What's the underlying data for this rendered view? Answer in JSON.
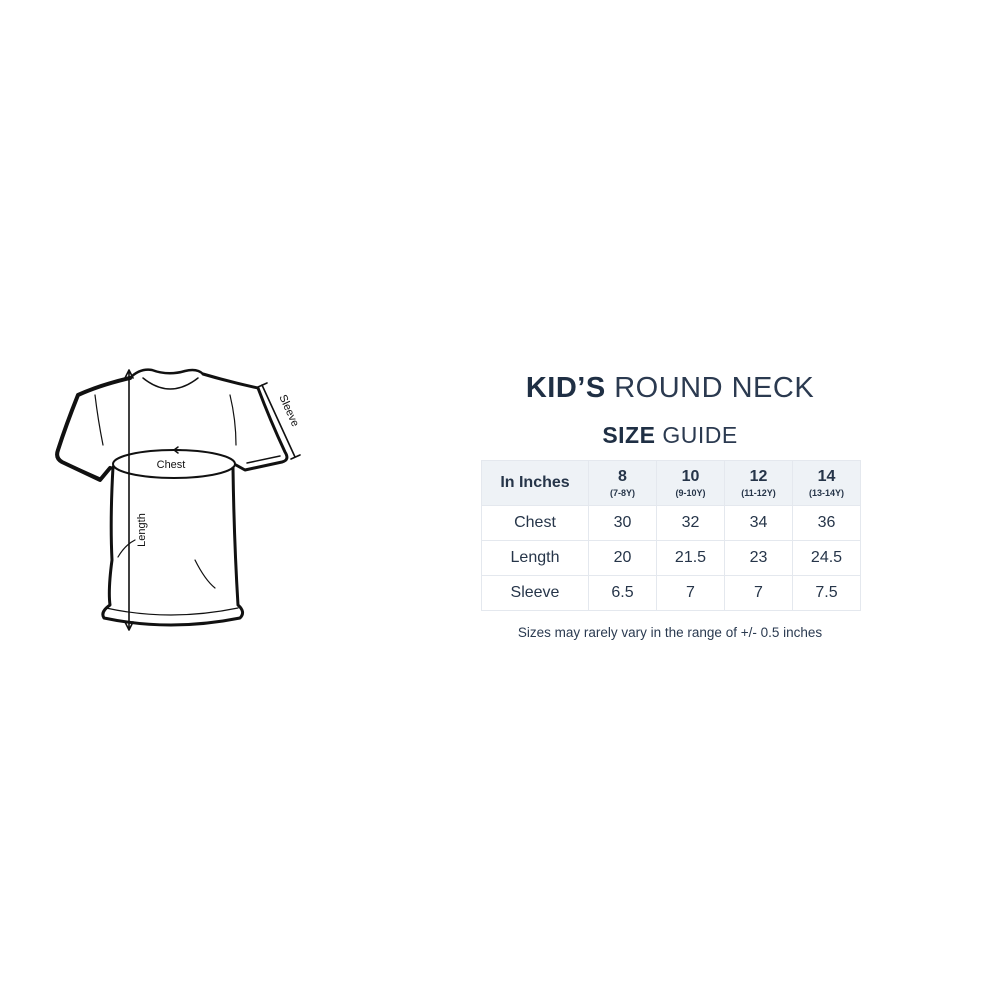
{
  "title": {
    "bold": "KID’S",
    "light": "ROUND NECK"
  },
  "subtitle": {
    "bold": "SIZE",
    "light": "GUIDE"
  },
  "diagram_labels": {
    "chest": "Chest",
    "length": "Length",
    "sleeve": "Sleeve"
  },
  "table": {
    "corner": "In Inches",
    "columns": [
      {
        "size": "8",
        "age": "(7-8Y)"
      },
      {
        "size": "10",
        "age": "(9-10Y)"
      },
      {
        "size": "12",
        "age": "(11-12Y)"
      },
      {
        "size": "14",
        "age": "(13-14Y)"
      }
    ],
    "rows": [
      {
        "label": "Chest",
        "values": [
          "30",
          "32",
          "34",
          "36"
        ]
      },
      {
        "label": "Length",
        "values": [
          "20",
          "21.5",
          "23",
          "24.5"
        ]
      },
      {
        "label": "Sleeve",
        "values": [
          "6.5",
          "7",
          "7",
          "7.5"
        ]
      }
    ]
  },
  "note": "Sizes may rarely vary in the range of +/- 0.5 inches",
  "colors": {
    "text": "#1f2f44",
    "header_bg": "#eef2f6",
    "border": "#e4e8ee"
  }
}
